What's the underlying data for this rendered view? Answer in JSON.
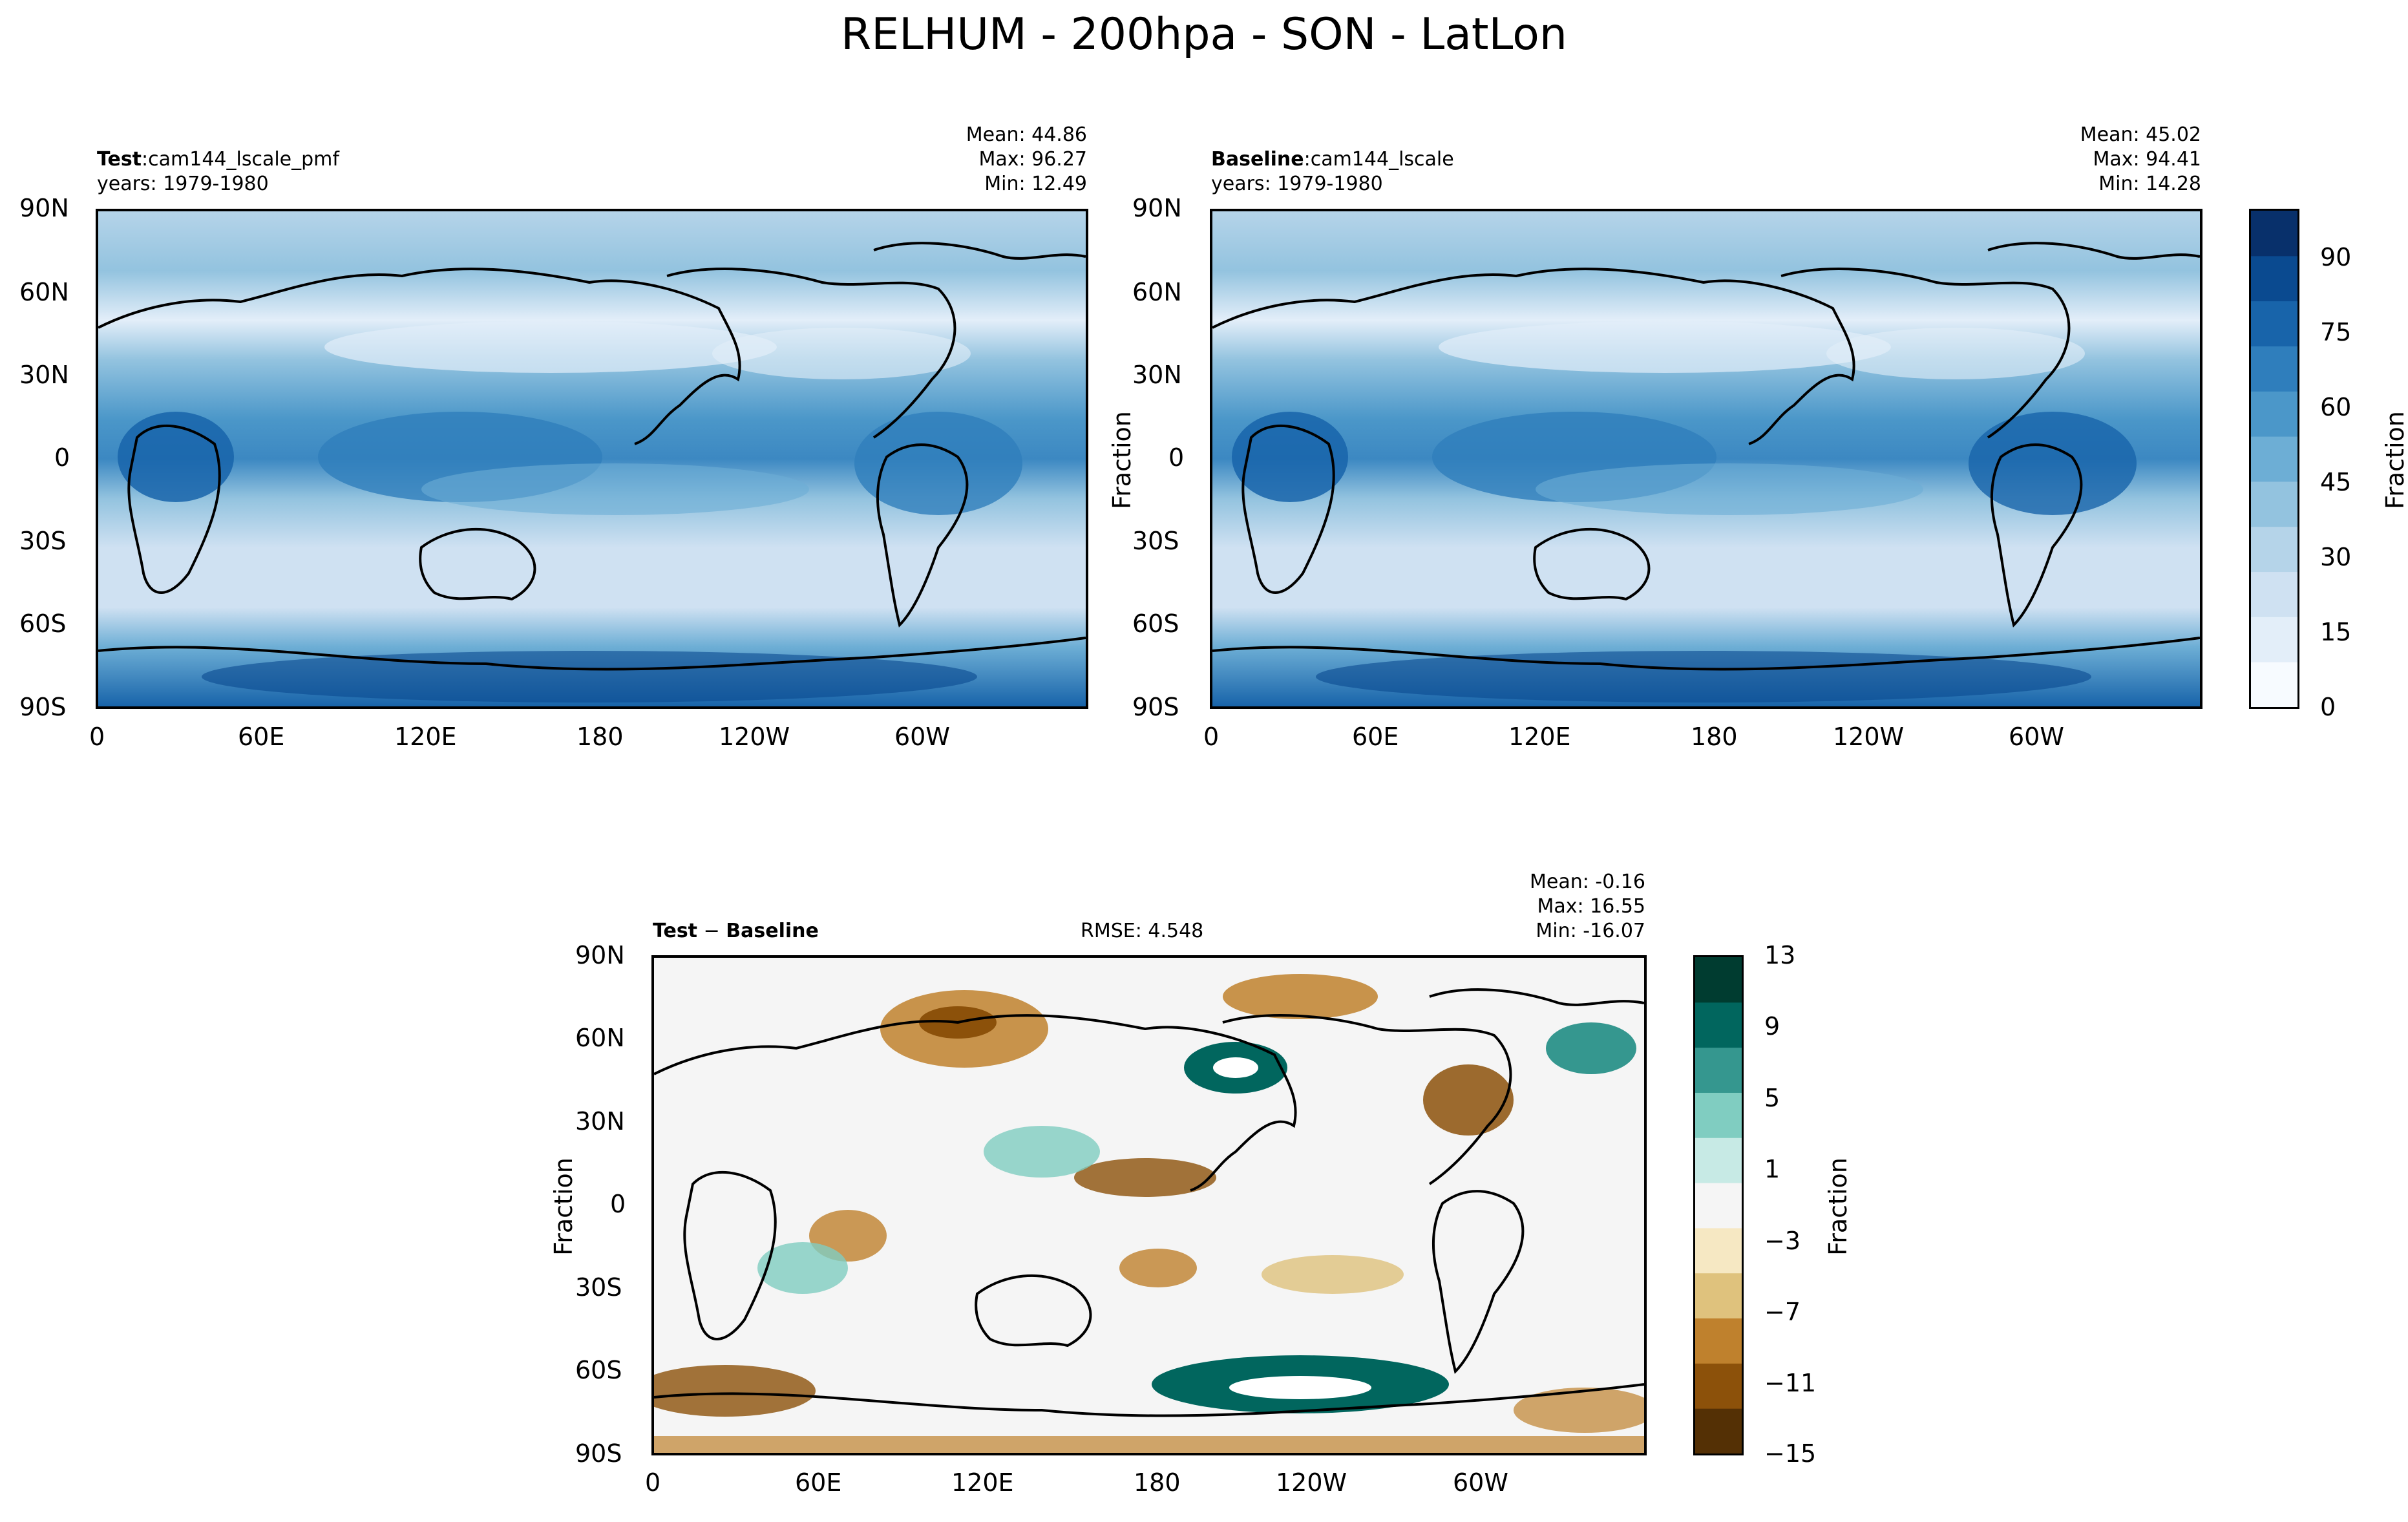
{
  "figure": {
    "title": "RELHUM - 200hpa - SON - LatLon"
  },
  "chart_data": [
    {
      "type": "heatmap",
      "panel": "test",
      "header": {
        "label": "Test",
        "sep": ":",
        "name": "cam144_lscale_pmf",
        "years": "years: 1979-1980"
      },
      "stats": {
        "mean": "Mean: 44.86",
        "max": "Max: 96.27",
        "min": "Min: 12.49"
      },
      "xticks": [
        "0",
        "60E",
        "120E",
        "180",
        "120W",
        "60W"
      ],
      "yticks": [
        "90N",
        "60N",
        "30N",
        "0",
        "30S",
        "60S",
        "90S"
      ],
      "xlim": [
        0,
        360
      ],
      "ylim": [
        -90,
        90
      ],
      "ylabel": ""
    },
    {
      "type": "heatmap",
      "panel": "baseline",
      "header": {
        "label": "Baseline",
        "sep": ":",
        "name": "cam144_lscale",
        "years": "years: 1979-1980"
      },
      "stats": {
        "mean": "Mean: 45.02",
        "max": "Max: 94.41",
        "min": "Min: 14.28"
      },
      "xticks": [
        "0",
        "60E",
        "120E",
        "180",
        "120W",
        "60W"
      ],
      "yticks": [
        "90N",
        "60N",
        "30N",
        "0",
        "30S",
        "60S",
        "90S"
      ],
      "xlim": [
        0,
        360
      ],
      "ylim": [
        -90,
        90
      ],
      "ylabel": "Fraction",
      "colorbar": {
        "ticks": [
          "0",
          "15",
          "30",
          "45",
          "60",
          "75",
          "90"
        ],
        "range": [
          0,
          100
        ],
        "label": "Fraction"
      }
    },
    {
      "type": "heatmap",
      "panel": "diff",
      "header": {
        "label": "Test",
        "sep": " − ",
        "label2": "Baseline",
        "rmse": "RMSE: 4.548"
      },
      "stats": {
        "mean": "Mean: -0.16",
        "max": "Max: 16.55",
        "min": "Min: -16.07"
      },
      "xticks": [
        "0",
        "60E",
        "120E",
        "180",
        "120W",
        "60W"
      ],
      "yticks": [
        "90N",
        "60N",
        "30N",
        "0",
        "30S",
        "60S",
        "90S"
      ],
      "xlim": [
        0,
        360
      ],
      "ylim": [
        -90,
        90
      ],
      "ylabel": "Fraction",
      "colorbar": {
        "ticks": [
          "13",
          "9",
          "5",
          "1",
          "−3",
          "−7",
          "−11",
          "−15"
        ],
        "range": [
          -15,
          13
        ],
        "label": "Fraction"
      }
    }
  ],
  "colors": {
    "blues": [
      "#f7fbff",
      "#e3eef9",
      "#cfe1f2",
      "#b5d4e9",
      "#93c3df",
      "#6daed5",
      "#4b97c9",
      "#2f7ebc",
      "#1864aa",
      "#0a4a90",
      "#08306b"
    ],
    "brbg": [
      "#543005",
      "#8c510a",
      "#bf812d",
      "#dfc27d",
      "#f6e8c3",
      "#f5f5f5",
      "#c7eae5",
      "#80cdc1",
      "#35978f",
      "#01665e",
      "#003c30"
    ]
  }
}
